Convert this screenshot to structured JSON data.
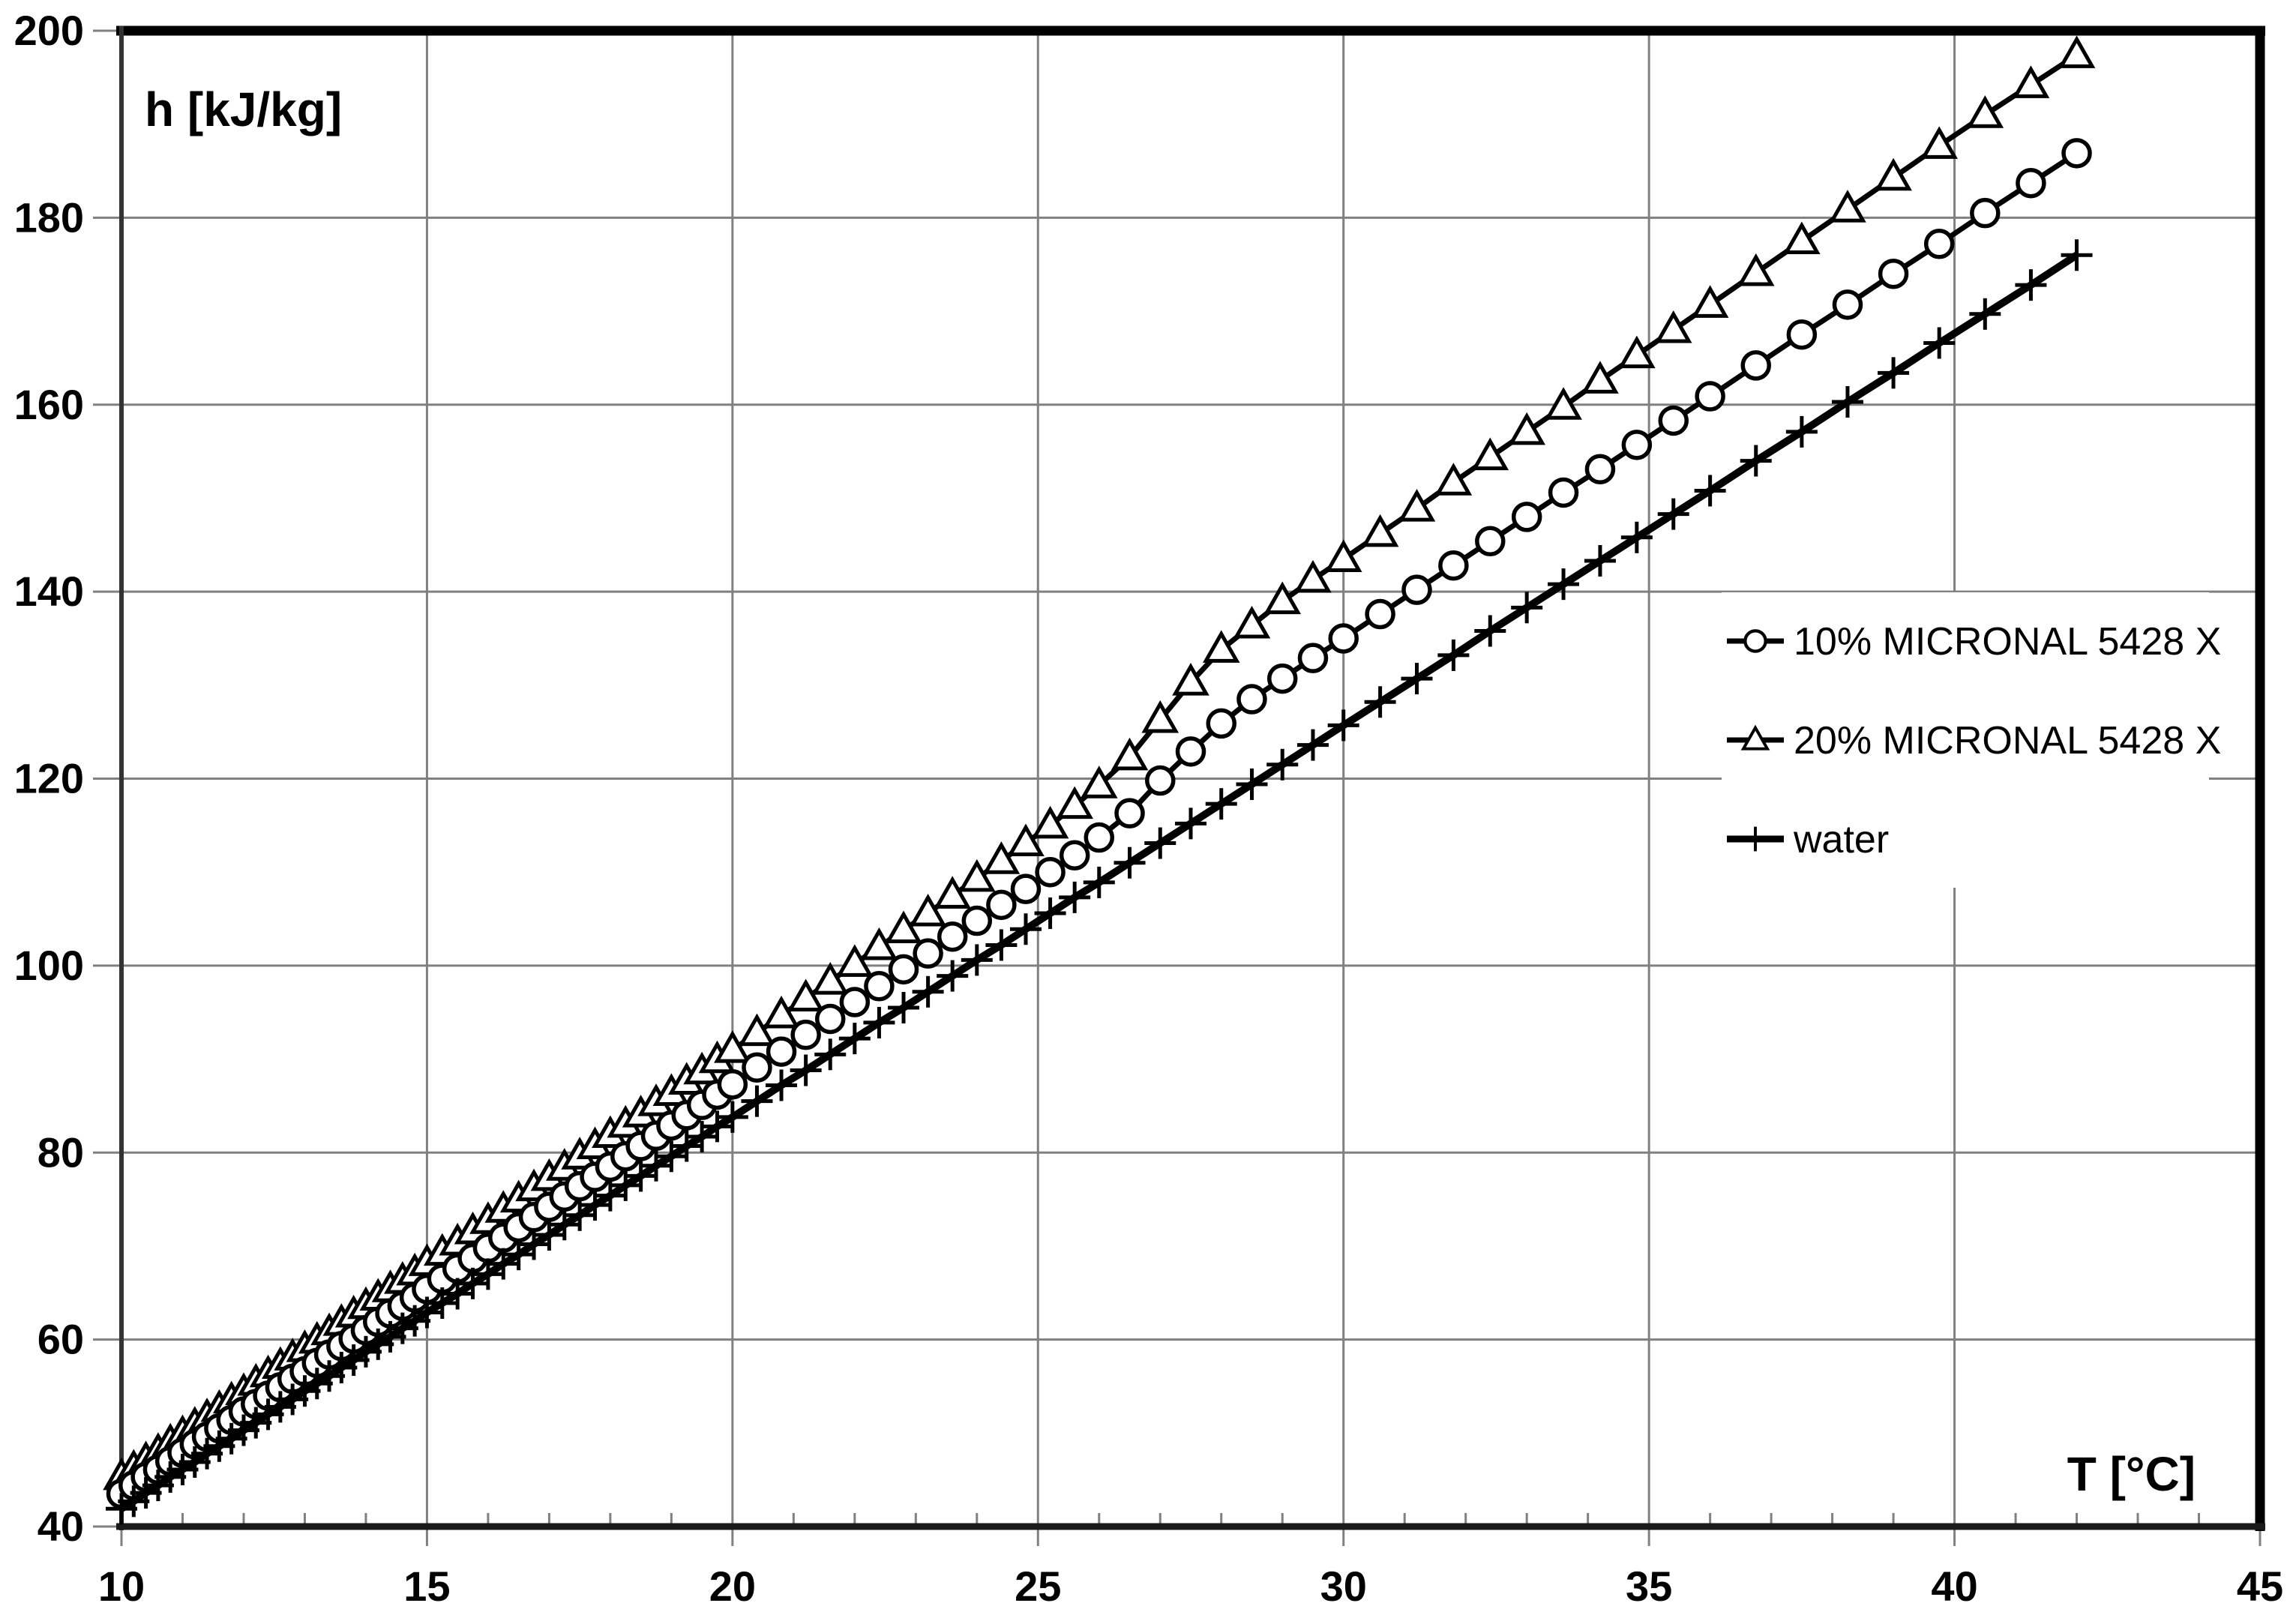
{
  "page": {
    "background": "#ffffff"
  },
  "chart_data": {
    "type": "line",
    "title": "",
    "xlabel": "T [°C]",
    "ylabel": "h [kJ/kg]",
    "x_axis": {
      "min": 10,
      "max": 45,
      "major_tick_step": 5,
      "minor_tick_step": 1,
      "tick_labels": [
        "10",
        "15",
        "20",
        "25",
        "30",
        "35",
        "40",
        "45"
      ]
    },
    "y_axis": {
      "min": 40,
      "max": 200,
      "major_tick_step": 20,
      "tick_labels": [
        "40",
        "60",
        "80",
        "100",
        "120",
        "140",
        "160",
        "180",
        "200"
      ]
    },
    "grid": {
      "show": true,
      "color": "#808080"
    },
    "legend": {
      "position": "right-middle",
      "background": "#ffffff"
    },
    "colors": {
      "series": "#000000",
      "grid": "#808080",
      "axis": "#1a1a1a"
    },
    "T": [
      10,
      10.2,
      10.4,
      10.6,
      10.8,
      11,
      11.2,
      11.4,
      11.6,
      11.8,
      12,
      12.2,
      12.4,
      12.6,
      12.8,
      13,
      13.2,
      13.4,
      13.6,
      13.8,
      14,
      14.2,
      14.4,
      14.6,
      14.8,
      15,
      15.25,
      15.5,
      15.75,
      16,
      16.25,
      16.5,
      16.75,
      17,
      17.25,
      17.5,
      17.75,
      18,
      18.25,
      18.5,
      18.75,
      19,
      19.25,
      19.5,
      19.75,
      20,
      20.4,
      20.8,
      21.2,
      21.6,
      22,
      22.4,
      22.8,
      23.2,
      23.6,
      24,
      24.4,
      24.8,
      25.2,
      25.6,
      26,
      26.5,
      27,
      27.5,
      28,
      28.5,
      29,
      29.5,
      30,
      30.6,
      31.2,
      31.8,
      32.4,
      33,
      33.6,
      34.2,
      34.8,
      35.4,
      36,
      36.75,
      37.5,
      38.25,
      39,
      39.75,
      40.5,
      41.25,
      42
    ],
    "series": [
      {
        "name": "10% MICRONAL 5428 X",
        "marker": "circle",
        "z": 2,
        "values": [
          43.5,
          44.4,
          45.3,
          46.1,
          47,
          47.9,
          48.8,
          49.6,
          50.5,
          51.4,
          52.3,
          53.1,
          54,
          54.9,
          55.8,
          56.6,
          57.5,
          58.4,
          59.3,
          60.1,
          61,
          61.9,
          62.8,
          63.6,
          64.5,
          65.4,
          66.5,
          67.6,
          68.7,
          69.8,
          70.9,
          72,
          73.1,
          74.2,
          75.3,
          76.4,
          77.4,
          78.5,
          79.6,
          80.7,
          81.8,
          82.9,
          84,
          85.1,
          86.2,
          87.3,
          89.1,
          90.8,
          92.6,
          94.3,
          96.1,
          97.8,
          99.6,
          101.3,
          103.1,
          104.8,
          106.5,
          108.2,
          110,
          111.8,
          113.7,
          116.3,
          119.8,
          122.9,
          125.9,
          128.5,
          130.7,
          132.9,
          135,
          137.6,
          140.2,
          142.8,
          145.4,
          148,
          150.6,
          153.1,
          155.7,
          158.3,
          160.9,
          164.2,
          167.5,
          170.7,
          174,
          177.2,
          180.5,
          183.7,
          186.9
        ]
      },
      {
        "name": "20% MICRONAL 5428 X",
        "marker": "triangle",
        "z": 1,
        "values": [
          45.3,
          46.2,
          47.1,
          48,
          49,
          49.9,
          50.8,
          51.7,
          52.6,
          53.5,
          54.4,
          55.4,
          56.3,
          57.2,
          58.1,
          59,
          59.9,
          60.8,
          61.8,
          62.7,
          63.6,
          64.5,
          65.4,
          66.3,
          67.2,
          68.2,
          69.3,
          70.4,
          71.6,
          72.7,
          73.9,
          75,
          76.2,
          77.3,
          78.4,
          79.6,
          80.7,
          81.9,
          83,
          84.1,
          85.3,
          86.4,
          87.6,
          88.7,
          89.9,
          91,
          92.8,
          94.7,
          96.5,
          98.3,
          100.2,
          102,
          103.8,
          105.6,
          107.5,
          109.3,
          111.2,
          113.1,
          115,
          117.1,
          119.3,
          122.3,
          126.3,
          130.3,
          133.8,
          136.4,
          139,
          141.3,
          143.5,
          146.2,
          148.9,
          151.7,
          154.4,
          157.1,
          159.8,
          162.6,
          165.3,
          168,
          170.7,
          174.1,
          177.5,
          180.9,
          184.3,
          187.7,
          191,
          194.2,
          197.4
        ]
      },
      {
        "name": "water",
        "marker": "plus",
        "z": 3,
        "values": [
          41.9,
          42.7,
          43.6,
          44.4,
          45.3,
          46.1,
          46.9,
          47.8,
          48.6,
          49.4,
          50.3,
          51.1,
          52,
          52.8,
          53.6,
          54.5,
          55.3,
          56.1,
          57,
          57.8,
          58.7,
          59.5,
          60.3,
          61.2,
          62,
          62.9,
          63.9,
          64.9,
          66,
          67,
          68.1,
          69.1,
          70.2,
          71.2,
          72.3,
          73.3,
          74.4,
          75.4,
          76.5,
          77.5,
          78.6,
          79.6,
          80.7,
          81.7,
          82.8,
          83.8,
          85.5,
          87.2,
          88.8,
          90.5,
          92.2,
          93.9,
          95.5,
          97.2,
          98.9,
          100.6,
          102.2,
          103.9,
          105.6,
          107.3,
          108.9,
          111,
          113.1,
          115.2,
          117.3,
          119.4,
          121.5,
          123.6,
          125.7,
          128.2,
          130.7,
          133.2,
          135.8,
          138.3,
          140.8,
          143.3,
          145.8,
          148.3,
          150.8,
          154,
          157.1,
          160.3,
          163.4,
          166.6,
          169.7,
          172.8,
          176
        ]
      }
    ]
  }
}
